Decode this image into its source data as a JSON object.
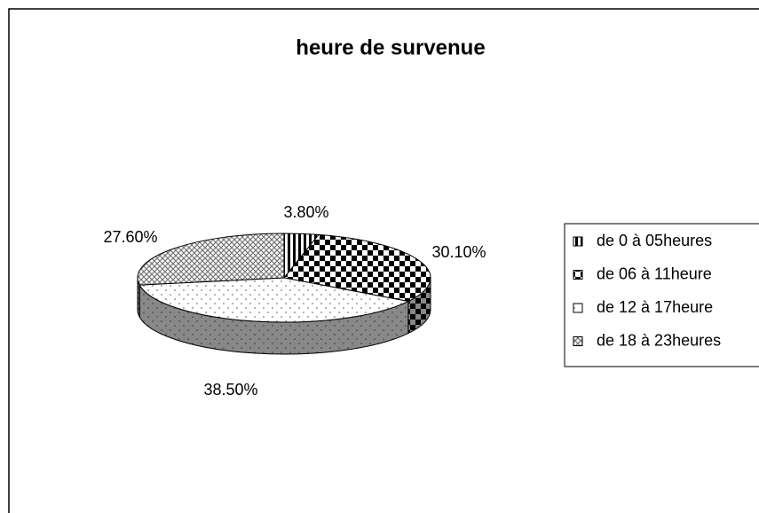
{
  "chart_data": {
    "type": "pie3d",
    "title": "heure de survenue",
    "categories": [
      "de 0 à 05heures",
      "de 06 à 11heure",
      "de 12 à 17heure",
      "de 18 à 23heures"
    ],
    "values": [
      3.8,
      30.1,
      38.5,
      27.6
    ],
    "value_labels": [
      "3.80%",
      "30.10%",
      "38.50%",
      "27.60%"
    ],
    "legend": "right"
  }
}
